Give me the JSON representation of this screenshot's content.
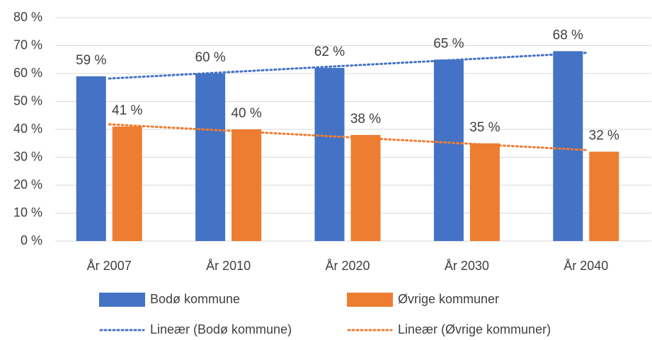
{
  "chart_data": {
    "type": "bar",
    "categories": [
      "År 2007",
      "År 2010",
      "År 2020",
      "År 2030",
      "År 2040"
    ],
    "series": [
      {
        "name": "Bodø kommune",
        "color": "#4472c4",
        "values": [
          59,
          60,
          62,
          65,
          68
        ],
        "value_labels": [
          "59 %",
          "60 %",
          "62 %",
          "65 %",
          "68 %"
        ],
        "trendline_name": "Lineær (Bodø kommune)"
      },
      {
        "name": "Øvrige kommuner",
        "color": "#ed7d31",
        "values": [
          41,
          40,
          38,
          35,
          32
        ],
        "value_labels": [
          "41 %",
          "40 %",
          "38 %",
          "35 %",
          "32 %"
        ],
        "trendline_name": "Lineær (Øvrige kommuner)"
      }
    ],
    "ylim": [
      0,
      80
    ],
    "yticks": [
      {
        "value": 0,
        "label": "0 %"
      },
      {
        "value": 10,
        "label": "10 %"
      },
      {
        "value": 20,
        "label": "20 %"
      },
      {
        "value": 30,
        "label": "30 %"
      },
      {
        "value": 40,
        "label": "40 %"
      },
      {
        "value": 50,
        "label": "50 %"
      },
      {
        "value": 60,
        "label": "60 %"
      },
      {
        "value": 70,
        "label": "70 %"
      },
      {
        "value": 80,
        "label": "80 %"
      }
    ],
    "grid": true,
    "legend": "bottom"
  }
}
